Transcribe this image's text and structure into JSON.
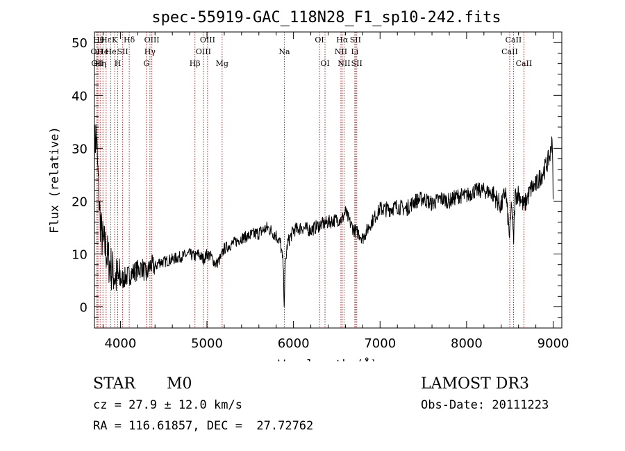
{
  "chart_data": {
    "type": "line",
    "title": "spec-55919-GAC_118N28_F1_sp10-242.fits",
    "xlabel": "Wavelength (Å)",
    "ylabel": "Flux (relative)",
    "xlim": [
      3700,
      9100
    ],
    "ylim": [
      -4,
      52
    ],
    "xticks": [
      4000,
      5000,
      6000,
      7000,
      8000,
      9000
    ],
    "yticks": [
      0,
      10,
      20,
      30,
      40,
      50
    ],
    "line_color": "#000000",
    "marker_color": "#b22222",
    "spectrum_anchors": {
      "wavelength": [
        3700,
        3720,
        3740,
        3760,
        3780,
        3800,
        3830,
        3860,
        3900,
        3950,
        4000,
        4050,
        4100,
        4150,
        4200,
        4250,
        4300,
        4350,
        4400,
        4450,
        4500,
        4600,
        4700,
        4800,
        4860,
        4900,
        4960,
        5000,
        5050,
        5100,
        5150,
        5200,
        5300,
        5400,
        5500,
        5600,
        5700,
        5800,
        5850,
        5880,
        5893,
        5905,
        5930,
        6000,
        6100,
        6200,
        6300,
        6400,
        6500,
        6560,
        6600,
        6650,
        6700,
        6750,
        6800,
        6900,
        7000,
        7100,
        7200,
        7300,
        7400,
        7500,
        7600,
        7700,
        7800,
        7900,
        8000,
        8100,
        8200,
        8300,
        8400,
        8450,
        8498,
        8520,
        8542,
        8560,
        8600,
        8662,
        8700,
        8750,
        8800,
        8850,
        8900,
        8950,
        8970,
        8990,
        9000
      ],
      "flux": [
        30,
        33,
        25,
        18,
        14,
        12,
        11,
        9,
        7,
        5.5,
        5,
        5.5,
        6,
        6.5,
        7,
        7.5,
        6,
        8,
        7.5,
        8.5,
        8.5,
        9,
        9.5,
        10,
        9.5,
        10,
        9,
        10,
        9.5,
        8,
        9,
        11,
        12,
        13,
        13.5,
        14,
        15,
        13.5,
        12,
        8,
        0.5,
        8,
        12,
        14.5,
        15,
        14.5,
        15.5,
        16,
        16.5,
        16.5,
        18,
        16,
        14.5,
        14,
        13,
        16,
        18.5,
        18.5,
        19,
        18.5,
        20,
        20.5,
        19.5,
        20.5,
        20,
        21,
        21,
        22,
        22,
        21.5,
        19,
        22,
        13,
        20,
        12,
        21,
        21.5,
        19,
        20.5,
        22.5,
        23,
        24.5,
        26,
        28,
        29,
        33,
        20
      ]
    },
    "line_markers": [
      {
        "wavelength": 3727,
        "label": "OII",
        "row": 2
      },
      {
        "wavelength": 3734,
        "label": "OII",
        "row": 3
      },
      {
        "wavelength": 3750,
        "label": "Hθ",
        "row": 1
      },
      {
        "wavelength": 3771,
        "label": "Hη",
        "row": 3
      },
      {
        "wavelength": 3798,
        "label": "He",
        "row": 2
      },
      {
        "wavelength": 3835,
        "label": "Hε",
        "row": 1
      },
      {
        "wavelength": 3889,
        "label": "He",
        "row": 2
      },
      {
        "wavelength": 3934,
        "label": "K",
        "row": 1
      },
      {
        "wavelength": 3969,
        "label": "H",
        "row": 3
      },
      {
        "wavelength": 4026,
        "label": "SII",
        "row": 2
      },
      {
        "wavelength": 4102,
        "label": "Hδ",
        "row": 1
      },
      {
        "wavelength": 4300,
        "label": "G",
        "row": 3
      },
      {
        "wavelength": 4341,
        "label": "Hγ",
        "row": 2
      },
      {
        "wavelength": 4363,
        "label": "OIII",
        "row": 1
      },
      {
        "wavelength": 4861,
        "label": "Hβ",
        "row": 3
      },
      {
        "wavelength": 4959,
        "label": "OIII",
        "row": 2
      },
      {
        "wavelength": 5007,
        "label": "OIII",
        "row": 1
      },
      {
        "wavelength": 5175,
        "label": "Mg",
        "row": 3
      },
      {
        "wavelength": 5894,
        "label": "Na",
        "row": 2
      },
      {
        "wavelength": 6300,
        "label": "OI",
        "row": 1
      },
      {
        "wavelength": 6364,
        "label": "OI",
        "row": 3
      },
      {
        "wavelength": 6548,
        "label": "NII",
        "row": 2
      },
      {
        "wavelength": 6563,
        "label": "Hα",
        "row": 1
      },
      {
        "wavelength": 6584,
        "label": "NII",
        "row": 3
      },
      {
        "wavelength": 6708,
        "label": "Li",
        "row": 2
      },
      {
        "wavelength": 6716,
        "label": "SII",
        "row": 1
      },
      {
        "wavelength": 6731,
        "label": "SII",
        "row": 3
      },
      {
        "wavelength": 8498,
        "label": "CaII",
        "row": 2
      },
      {
        "wavelength": 8542,
        "label": "CaII",
        "row": 1
      },
      {
        "wavelength": 8662,
        "label": "CaII",
        "row": 3
      }
    ]
  },
  "info": {
    "class_label": "STAR",
    "subclass": "M0",
    "survey": "LAMOST DR3",
    "cz": "cz = 27.9 ± 12.0 km/s",
    "obs_date": "Obs-Date: 20111223",
    "coords": "RA = 116.61857, DEC =  27.72762"
  }
}
